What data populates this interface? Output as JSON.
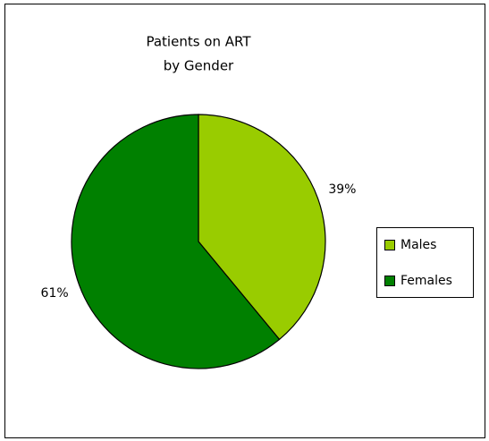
{
  "chart_data": {
    "type": "pie",
    "title": [
      "Patients on ART",
      "by Gender"
    ],
    "categories": [
      "Males",
      "Females"
    ],
    "values": [
      39,
      61
    ],
    "value_labels": [
      "39%",
      "61%"
    ],
    "colors": [
      "#99cc00",
      "#008000"
    ],
    "legend": "right"
  }
}
